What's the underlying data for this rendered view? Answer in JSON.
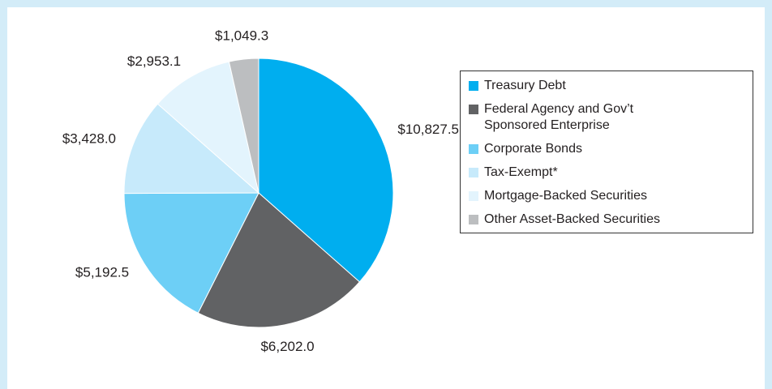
{
  "chart_data": {
    "type": "pie",
    "categories": [
      "Treasury Debt",
      "Federal Agency and Gov’t Sponsored Enterprise",
      "Corporate Bonds",
      "Tax-Exempt*",
      "Mortgage-Backed Securities",
      "Other Asset-Backed Securities"
    ],
    "values": [
      10827.5,
      6202.0,
      5192.5,
      3428.0,
      2953.1,
      1049.3
    ],
    "value_labels": [
      "$10,827.5",
      "$6,202.0",
      "$5,192.5",
      "$3,428.0",
      "$2,953.1",
      "$1,049.3"
    ],
    "colors": [
      "#00aeef",
      "#616264",
      "#6dcff6",
      "#c7eafb",
      "#e3f4fd",
      "#bcbec0"
    ],
    "legend": "right"
  }
}
